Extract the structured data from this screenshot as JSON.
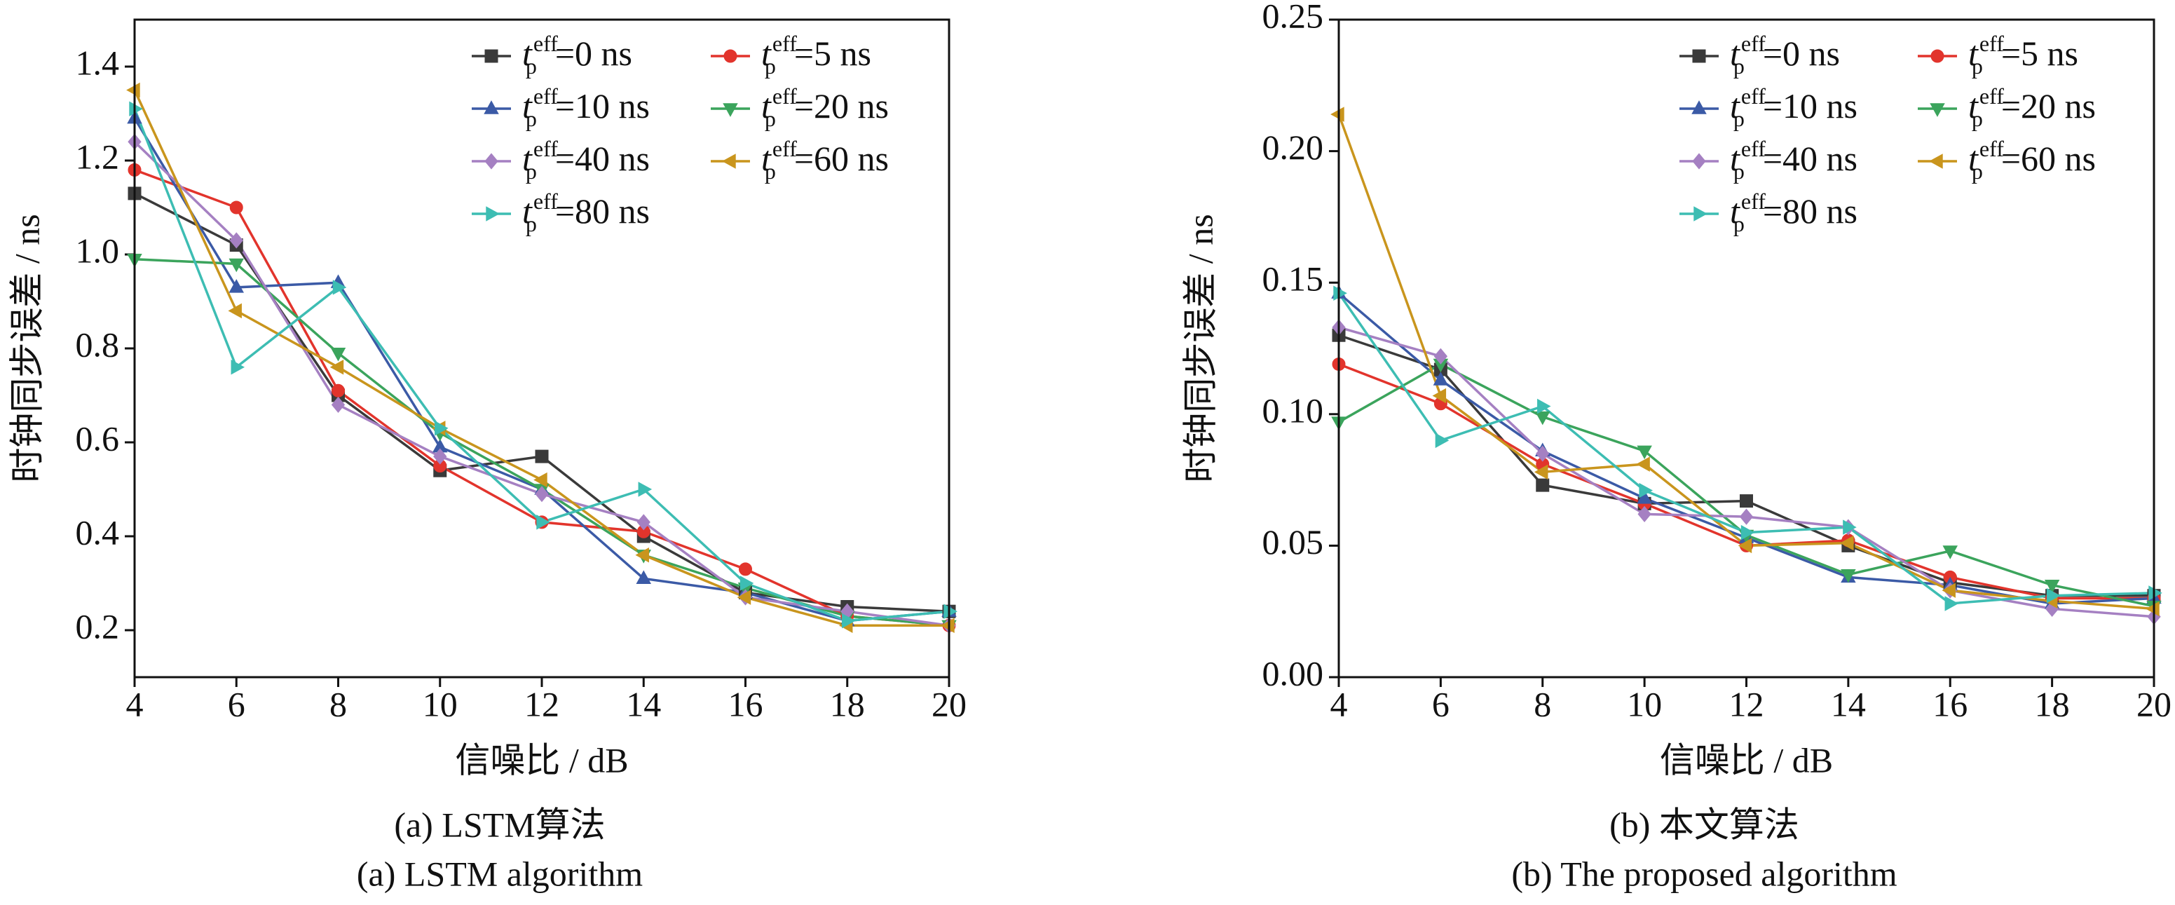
{
  "chart_data": [
    {
      "type": "line",
      "caption": "(a) LSTM算法",
      "caption_en": "(a) LSTM algorithm",
      "xlabel": "信噪比 / dB",
      "ylabel": "时钟同步误差 / ns",
      "legend_symbol": {
        "base": "t",
        "sub": "p",
        "sup": "eff"
      },
      "x": [
        4,
        6,
        8,
        10,
        12,
        14,
        16,
        18,
        20
      ],
      "xlim": [
        4,
        20
      ],
      "xticks": [
        4,
        6,
        8,
        10,
        12,
        14,
        16,
        18,
        20
      ],
      "ylim": [
        0.1,
        1.5
      ],
      "yticks": [
        0.2,
        0.4,
        0.6,
        0.8,
        {
          "value": 1.0,
          "label": "1.0"
        },
        1.2,
        1.4
      ],
      "series": [
        {
          "name": "=0 ns",
          "color": "#3a3a3a",
          "marker": "square",
          "values": [
            1.13,
            1.02,
            0.7,
            0.54,
            0.57,
            0.4,
            0.28,
            0.25,
            0.24
          ]
        },
        {
          "name": "=5 ns",
          "color": "#e2342c",
          "marker": "circle",
          "values": [
            1.18,
            1.1,
            0.71,
            0.55,
            0.43,
            0.41,
            0.33,
            0.23,
            0.21
          ]
        },
        {
          "name": "=10 ns",
          "color": "#3b5aa6",
          "marker": "triangle-up",
          "values": [
            1.29,
            0.93,
            0.94,
            0.59,
            0.5,
            0.31,
            0.28,
            0.22,
            0.24
          ]
        },
        {
          "name": "=20 ns",
          "color": "#3ba45c",
          "marker": "triangle-down",
          "values": [
            0.99,
            0.98,
            0.79,
            0.62,
            0.5,
            0.36,
            0.29,
            0.23,
            0.21
          ]
        },
        {
          "name": "=40 ns",
          "color": "#a580c2",
          "marker": "diamond",
          "values": [
            1.24,
            1.03,
            0.68,
            0.57,
            0.49,
            0.43,
            0.27,
            0.24,
            0.21
          ]
        },
        {
          "name": "=60 ns",
          "color": "#c9951d",
          "marker": "triangle-left",
          "values": [
            1.35,
            0.88,
            0.76,
            0.63,
            0.52,
            0.36,
            0.27,
            0.21,
            0.21
          ]
        },
        {
          "name": "=80 ns",
          "color": "#3dbdb3",
          "marker": "triangle-right",
          "values": [
            1.31,
            0.76,
            0.93,
            0.63,
            0.43,
            0.5,
            0.3,
            0.22,
            0.24
          ]
        }
      ]
    },
    {
      "type": "line",
      "caption": "(b) 本文算法",
      "caption_en": "(b)  The proposed algorithm",
      "xlabel": "信噪比 / dB",
      "ylabel": "时钟同步误差 / ns",
      "legend_symbol": {
        "base": "t",
        "sub": "p",
        "sup": "eff"
      },
      "x": [
        4,
        6,
        8,
        10,
        12,
        14,
        16,
        18,
        20
      ],
      "xlim": [
        4,
        20
      ],
      "xticks": [
        4,
        6,
        8,
        10,
        12,
        14,
        16,
        18,
        20
      ],
      "ylim": [
        0,
        0.25
      ],
      "yticks": [
        {
          "value": 0,
          "label": "0.00"
        },
        {
          "value": 0.05,
          "label": "0.05"
        },
        {
          "value": 0.1,
          "label": "0.10"
        },
        {
          "value": 0.15,
          "label": "0.15"
        },
        {
          "value": 0.2,
          "label": "0.20"
        },
        {
          "value": 0.25,
          "label": "0.25"
        }
      ],
      "series": [
        {
          "name": "=0 ns",
          "color": "#3a3a3a",
          "marker": "square",
          "values": [
            0.13,
            0.117,
            0.073,
            0.066,
            0.067,
            0.05,
            0.036,
            0.031,
            0.031
          ]
        },
        {
          "name": "=5 ns",
          "color": "#e2342c",
          "marker": "circle",
          "values": [
            0.119,
            0.104,
            0.081,
            0.066,
            0.05,
            0.052,
            0.038,
            0.03,
            0.03
          ]
        },
        {
          "name": "=10 ns",
          "color": "#3b5aa6",
          "marker": "triangle-up",
          "values": [
            0.146,
            0.113,
            0.086,
            0.068,
            0.053,
            0.038,
            0.035,
            0.028,
            0.03
          ]
        },
        {
          "name": "=20 ns",
          "color": "#3ba45c",
          "marker": "triangle-down",
          "values": [
            0.097,
            0.119,
            0.099,
            0.086,
            0.054,
            0.039,
            0.048,
            0.035,
            0.027
          ]
        },
        {
          "name": "=40 ns",
          "color": "#a580c2",
          "marker": "diamond",
          "values": [
            0.133,
            0.122,
            0.085,
            0.062,
            0.061,
            0.057,
            0.033,
            0.026,
            0.023
          ]
        },
        {
          "name": "=60 ns",
          "color": "#c9951d",
          "marker": "triangle-left",
          "values": [
            0.214,
            0.107,
            0.078,
            0.081,
            0.05,
            0.051,
            0.033,
            0.029,
            0.026
          ]
        },
        {
          "name": "=80 ns",
          "color": "#3dbdb3",
          "marker": "triangle-right",
          "values": [
            0.146,
            0.09,
            0.103,
            0.071,
            0.055,
            0.057,
            0.028,
            0.031,
            0.032
          ]
        }
      ]
    }
  ]
}
